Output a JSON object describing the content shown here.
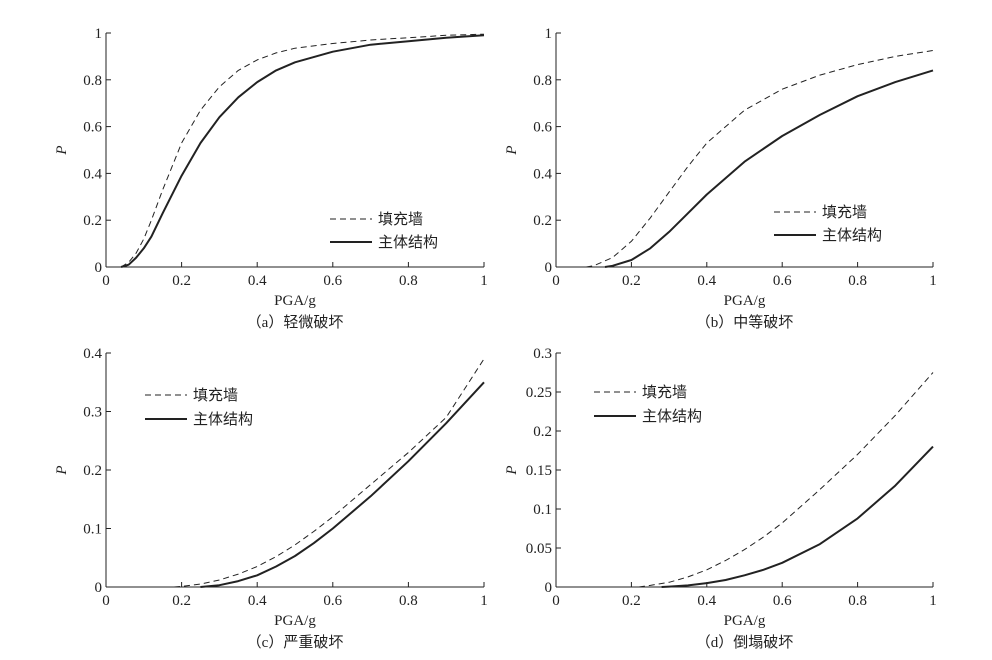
{
  "chart_data": [
    {
      "id": "a",
      "type": "line",
      "caption": "（a）轻微破坏",
      "xlabel": "PGA/g",
      "ylabel": "P",
      "xlim": [
        0,
        1
      ],
      "ylim": [
        0,
        1
      ],
      "xticks": [
        0,
        0.2,
        0.4,
        0.6,
        0.8,
        1
      ],
      "xtick_labels": [
        "0",
        "0.2",
        "0.4",
        "0.6",
        "0.8",
        "1"
      ],
      "yticks": [
        0,
        0.2,
        0.4,
        0.6,
        0.8,
        1
      ],
      "ytick_labels": [
        "0",
        "0.2",
        "0.4",
        "0.6",
        "0.8",
        "1"
      ],
      "legend_position": "bottom-right",
      "series": [
        {
          "name": "填充墙",
          "style": "dashed",
          "x": [
            0.04,
            0.06,
            0.08,
            0.1,
            0.12,
            0.15,
            0.2,
            0.25,
            0.3,
            0.35,
            0.4,
            0.45,
            0.5,
            0.6,
            0.7,
            0.8,
            0.9,
            1.0
          ],
          "y": [
            0.0,
            0.02,
            0.06,
            0.12,
            0.2,
            0.33,
            0.53,
            0.67,
            0.77,
            0.84,
            0.885,
            0.915,
            0.935,
            0.955,
            0.97,
            0.98,
            0.99,
            0.995
          ]
        },
        {
          "name": "主体结构",
          "style": "solid",
          "x": [
            0.04,
            0.06,
            0.08,
            0.1,
            0.12,
            0.15,
            0.2,
            0.25,
            0.3,
            0.35,
            0.4,
            0.45,
            0.5,
            0.6,
            0.7,
            0.8,
            0.9,
            1.0
          ],
          "y": [
            0.0,
            0.01,
            0.04,
            0.08,
            0.13,
            0.23,
            0.39,
            0.53,
            0.64,
            0.725,
            0.79,
            0.84,
            0.875,
            0.92,
            0.95,
            0.965,
            0.98,
            0.99
          ]
        }
      ]
    },
    {
      "id": "b",
      "type": "line",
      "caption": "（b）中等破坏",
      "xlabel": "PGA/g",
      "ylabel": "P",
      "xlim": [
        0,
        1
      ],
      "ylim": [
        0,
        1
      ],
      "xticks": [
        0,
        0.2,
        0.4,
        0.6,
        0.8,
        1
      ],
      "xtick_labels": [
        "0",
        "0.2",
        "0.4",
        "0.6",
        "0.8",
        "1"
      ],
      "yticks": [
        0,
        0.2,
        0.4,
        0.6,
        0.8,
        1
      ],
      "ytick_labels": [
        "0",
        "0.2",
        "0.4",
        "0.6",
        "0.8",
        "1"
      ],
      "legend_position": "center-right",
      "series": [
        {
          "name": "填充墙",
          "style": "dashed",
          "x": [
            0.08,
            0.1,
            0.15,
            0.2,
            0.25,
            0.3,
            0.35,
            0.4,
            0.5,
            0.6,
            0.7,
            0.8,
            0.9,
            1.0
          ],
          "y": [
            0.0,
            0.005,
            0.04,
            0.11,
            0.21,
            0.32,
            0.43,
            0.53,
            0.67,
            0.76,
            0.82,
            0.865,
            0.9,
            0.925
          ]
        },
        {
          "name": "主体结构",
          "style": "solid",
          "x": [
            0.13,
            0.15,
            0.2,
            0.25,
            0.3,
            0.35,
            0.4,
            0.5,
            0.6,
            0.7,
            0.8,
            0.9,
            1.0
          ],
          "y": [
            0.0,
            0.005,
            0.03,
            0.08,
            0.15,
            0.23,
            0.31,
            0.45,
            0.56,
            0.65,
            0.73,
            0.79,
            0.84
          ]
        }
      ]
    },
    {
      "id": "c",
      "type": "line",
      "caption": "（c）严重破坏",
      "xlabel": "PGA/g",
      "ylabel": "P",
      "xlim": [
        0,
        1
      ],
      "ylim": [
        0,
        0.4
      ],
      "xticks": [
        0,
        0.2,
        0.4,
        0.6,
        0.8,
        1
      ],
      "xtick_labels": [
        "0",
        "0.2",
        "0.4",
        "0.6",
        "0.8",
        "1"
      ],
      "yticks": [
        0,
        0.1,
        0.2,
        0.3,
        0.4
      ],
      "ytick_labels": [
        "0",
        "0.1",
        "0.2",
        "0.3",
        "0.4"
      ],
      "legend_position": "top-left",
      "series": [
        {
          "name": "填充墙",
          "style": "dashed",
          "x": [
            0.18,
            0.2,
            0.25,
            0.3,
            0.35,
            0.4,
            0.45,
            0.5,
            0.55,
            0.6,
            0.7,
            0.8,
            0.9,
            1.0
          ],
          "y": [
            0.0,
            0.001,
            0.005,
            0.012,
            0.022,
            0.035,
            0.052,
            0.072,
            0.095,
            0.12,
            0.175,
            0.23,
            0.29,
            0.39
          ]
        },
        {
          "name": "主体结构",
          "style": "solid",
          "x": [
            0.25,
            0.3,
            0.35,
            0.4,
            0.45,
            0.5,
            0.55,
            0.6,
            0.7,
            0.8,
            0.9,
            1.0
          ],
          "y": [
            0.0,
            0.003,
            0.01,
            0.02,
            0.035,
            0.053,
            0.075,
            0.1,
            0.155,
            0.215,
            0.28,
            0.35
          ]
        }
      ]
    },
    {
      "id": "d",
      "type": "line",
      "caption": "（d）倒塌破坏",
      "xlabel": "PGA/g",
      "ylabel": "P",
      "xlim": [
        0,
        1
      ],
      "ylim": [
        0,
        0.3
      ],
      "xticks": [
        0,
        0.2,
        0.4,
        0.6,
        0.8,
        1
      ],
      "xtick_labels": [
        "0",
        "0.2",
        "0.4",
        "0.6",
        "0.8",
        "1"
      ],
      "yticks": [
        0,
        0.05,
        0.1,
        0.15,
        0.2,
        0.25,
        0.3
      ],
      "ytick_labels": [
        "0",
        "0.05",
        "0.1",
        "0.15",
        "0.2",
        "0.25",
        "0.3"
      ],
      "legend_position": "top-left",
      "series": [
        {
          "name": "填充墙",
          "style": "dashed",
          "x": [
            0.22,
            0.25,
            0.3,
            0.35,
            0.4,
            0.45,
            0.5,
            0.55,
            0.6,
            0.7,
            0.8,
            0.9,
            1.0
          ],
          "y": [
            0.0,
            0.002,
            0.006,
            0.013,
            0.022,
            0.034,
            0.048,
            0.064,
            0.082,
            0.125,
            0.17,
            0.22,
            0.275
          ]
        },
        {
          "name": "主体结构",
          "style": "solid",
          "x": [
            0.28,
            0.3,
            0.35,
            0.4,
            0.45,
            0.5,
            0.55,
            0.6,
            0.7,
            0.8,
            0.9,
            1.0
          ],
          "y": [
            0.0,
            0.0005,
            0.002,
            0.005,
            0.009,
            0.015,
            0.022,
            0.031,
            0.055,
            0.088,
            0.13,
            0.18
          ]
        }
      ]
    }
  ]
}
